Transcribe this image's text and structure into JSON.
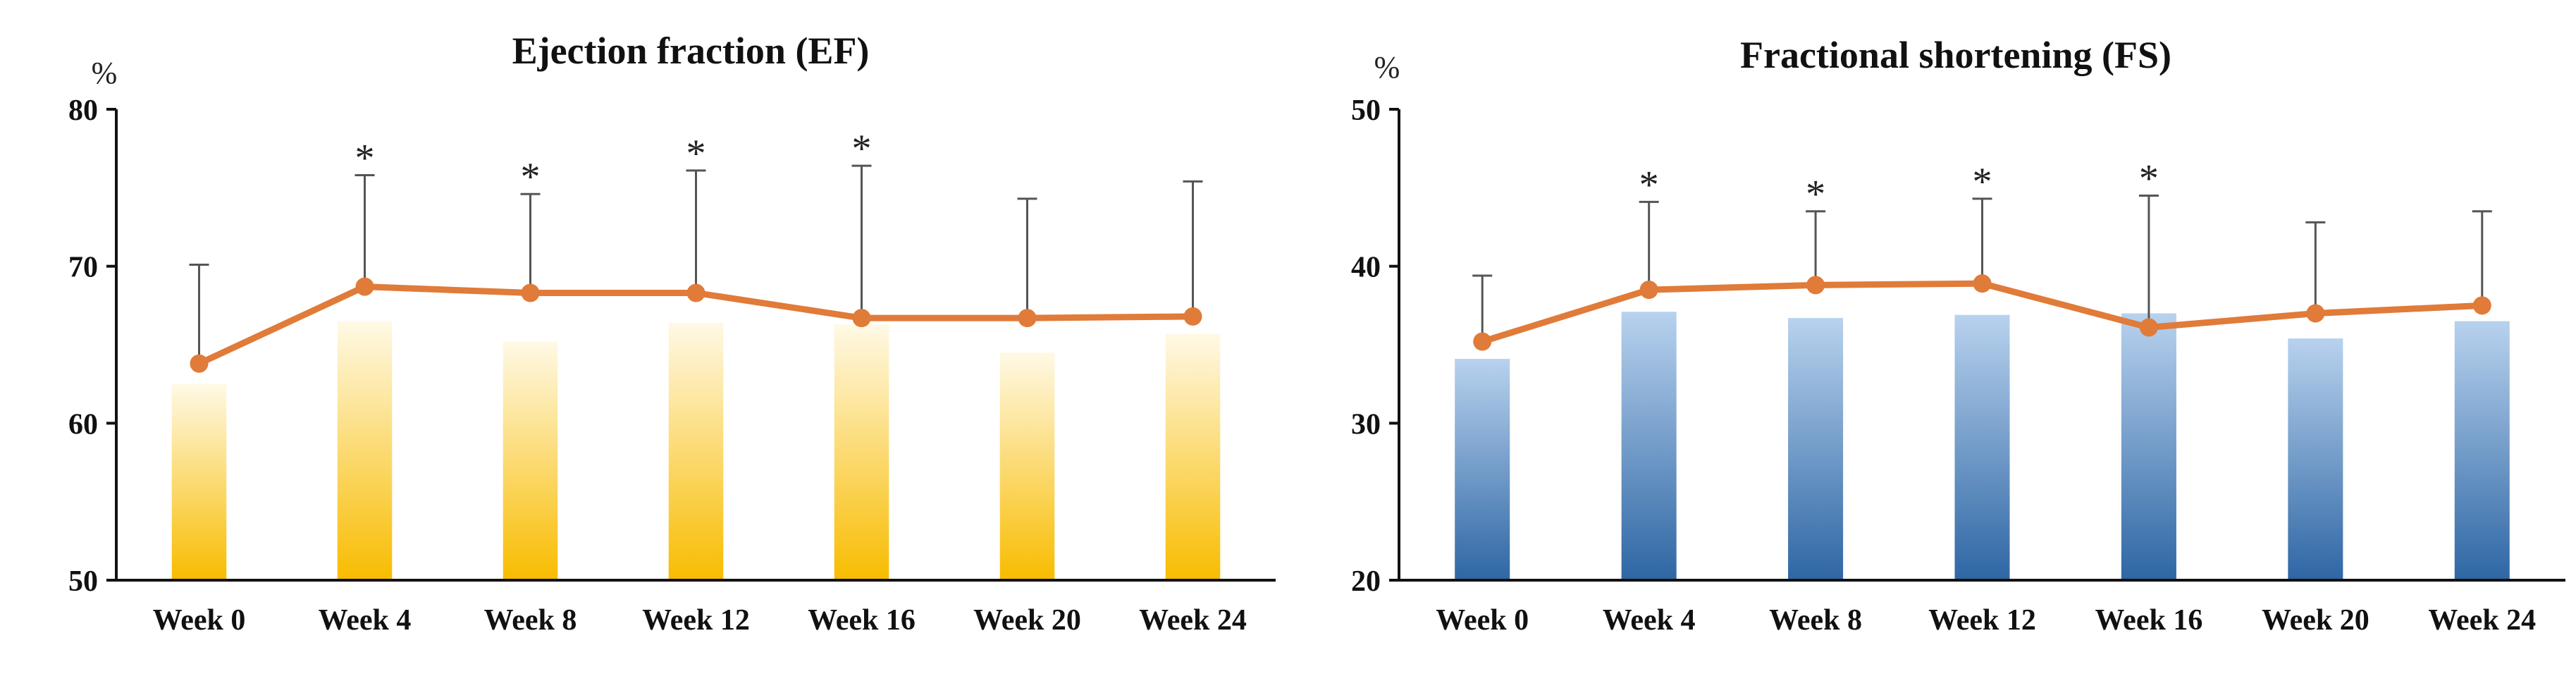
{
  "chart_data": [
    {
      "type": "bar",
      "title": "Ejection fraction (EF)",
      "unit_label": "%",
      "categories": [
        "Week 0",
        "Week 4",
        "Week 8",
        "Week 12",
        "Week 16",
        "Week 20",
        "Week 24"
      ],
      "ylim": [
        50,
        80
      ],
      "yticks": [
        "50",
        "60",
        "70",
        "80"
      ],
      "bar_values": [
        62.5,
        66.5,
        65.2,
        66.4,
        66.3,
        64.5,
        65.7
      ],
      "line_values": [
        63.8,
        68.7,
        68.3,
        68.3,
        66.7,
        66.7,
        66.8
      ],
      "error_upper": [
        70.1,
        75.8,
        74.6,
        76.1,
        76.4,
        74.3,
        75.4
      ],
      "significance": [
        "",
        "*",
        "*",
        "*",
        "*",
        "",
        ""
      ],
      "colors": {
        "bar_top": "#FFF9E6",
        "bar_bottom": "#F8BC00",
        "line": "#E07B39",
        "axis": "#111111"
      }
    },
    {
      "type": "bar",
      "title": "Fractional shortening (FS)",
      "unit_label": "%",
      "categories": [
        "Week 0",
        "Week 4",
        "Week 8",
        "Week 12",
        "Week 16",
        "Week 20",
        "Week 24"
      ],
      "ylim": [
        20,
        50
      ],
      "yticks": [
        "20",
        "30",
        "40",
        "50"
      ],
      "bar_values": [
        34.1,
        37.1,
        36.7,
        36.9,
        37.0,
        35.4,
        36.5
      ],
      "line_values": [
        35.2,
        38.5,
        38.8,
        38.9,
        36.1,
        37.0,
        37.5
      ],
      "error_upper": [
        39.4,
        44.1,
        43.5,
        44.3,
        44.5,
        42.8,
        43.5
      ],
      "significance": [
        "",
        "*",
        "*",
        "*",
        "*",
        "",
        ""
      ],
      "colors": {
        "bar_top": "#B8D2EE",
        "bar_bottom": "#2E66A4",
        "line": "#E07B39",
        "axis": "#111111"
      }
    }
  ]
}
